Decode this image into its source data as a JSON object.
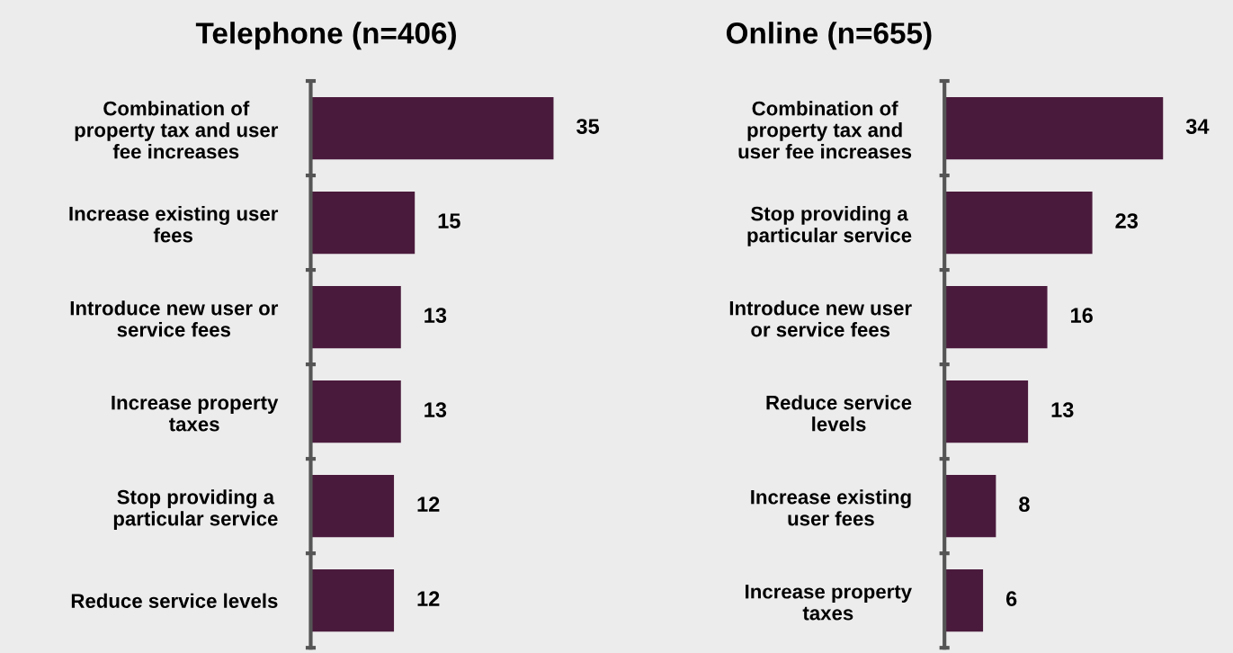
{
  "chart_data": [
    {
      "type": "bar",
      "orientation": "horizontal",
      "title": "Telephone (n=406)",
      "categories": [
        "Combination of\nproperty tax and user\nfee increases",
        "Increase existing user\nfees",
        "Introduce new user or\nservice fees",
        "Increase property\ntaxes",
        "Stop providing a\nparticular service",
        "Reduce service levels"
      ],
      "values": [
        35,
        15,
        13,
        13,
        12,
        12
      ],
      "color": "#4a1a3c",
      "data_labels": true,
      "grid": false,
      "legend": false
    },
    {
      "type": "bar",
      "orientation": "horizontal",
      "title": "Online (n=655)",
      "categories": [
        "Combination of\nproperty tax and\nuser fee increases",
        "Stop providing a\nparticular service",
        "Introduce new user\nor service fees",
        "Reduce service\nlevels",
        "Increase existing\nuser fees",
        "Increase property\ntaxes"
      ],
      "values": [
        34,
        23,
        16,
        13,
        8,
        6
      ],
      "color": "#4a1a3c",
      "data_labels": true,
      "grid": false,
      "legend": false
    }
  ]
}
